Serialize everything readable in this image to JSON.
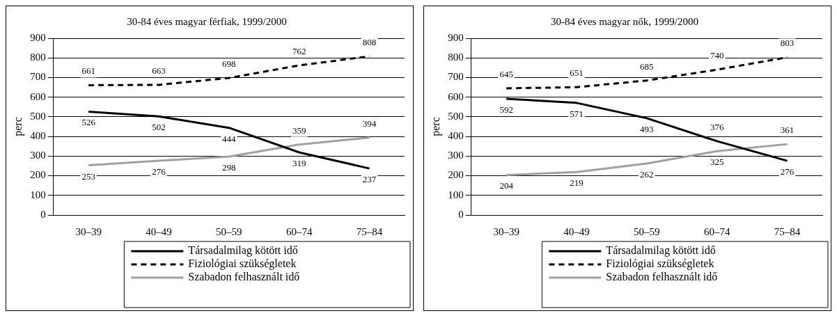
{
  "chart_data": [
    {
      "type": "line",
      "title": "30-84 éves magyar férfiak, 1999/2000",
      "ylabel": "perc",
      "categories": [
        "30–39",
        "40–49",
        "50–59",
        "60–74",
        "75–84"
      ],
      "ylim": [
        0,
        900
      ],
      "yticks": [
        0,
        100,
        200,
        300,
        400,
        500,
        600,
        700,
        800,
        900
      ],
      "grid": "y",
      "legend": "bottom",
      "data_labels": true,
      "marker": "none",
      "series": [
        {
          "name": "Társadalmilag kötött idő",
          "color": "#000000",
          "line_style": "solid",
          "values": [
            526,
            502,
            444,
            319,
            237
          ]
        },
        {
          "name": "Fiziológiai szükségletek",
          "color": "#000000",
          "line_style": "dashed",
          "values": [
            661,
            663,
            698,
            762,
            808
          ]
        },
        {
          "name": "Szabadon felhasznált idő",
          "color": "#a0a0a0",
          "line_style": "solid",
          "values": [
            253,
            276,
            298,
            359,
            394
          ]
        }
      ]
    },
    {
      "type": "line",
      "title": "30-84 éves magyar nők, 1999/2000",
      "ylabel": "perc",
      "categories": [
        "30–39",
        "40–49",
        "50–59",
        "60–74",
        "75–84"
      ],
      "ylim": [
        0,
        900
      ],
      "yticks": [
        0,
        100,
        200,
        300,
        400,
        500,
        600,
        700,
        800,
        900
      ],
      "grid": "y",
      "legend": "bottom",
      "data_labels": true,
      "marker": "none",
      "series": [
        {
          "name": "Társadalmilag kötött idő",
          "color": "#000000",
          "line_style": "solid",
          "values": [
            592,
            571,
            493,
            376,
            276
          ]
        },
        {
          "name": "Fiziológiai szükségletek",
          "color": "#000000",
          "line_style": "dashed",
          "values": [
            645,
            651,
            685,
            740,
            803
          ]
        },
        {
          "name": "Szabadon felhasznált idő",
          "color": "#a0a0a0",
          "line_style": "solid",
          "values": [
            204,
            219,
            262,
            325,
            361
          ]
        }
      ]
    }
  ]
}
